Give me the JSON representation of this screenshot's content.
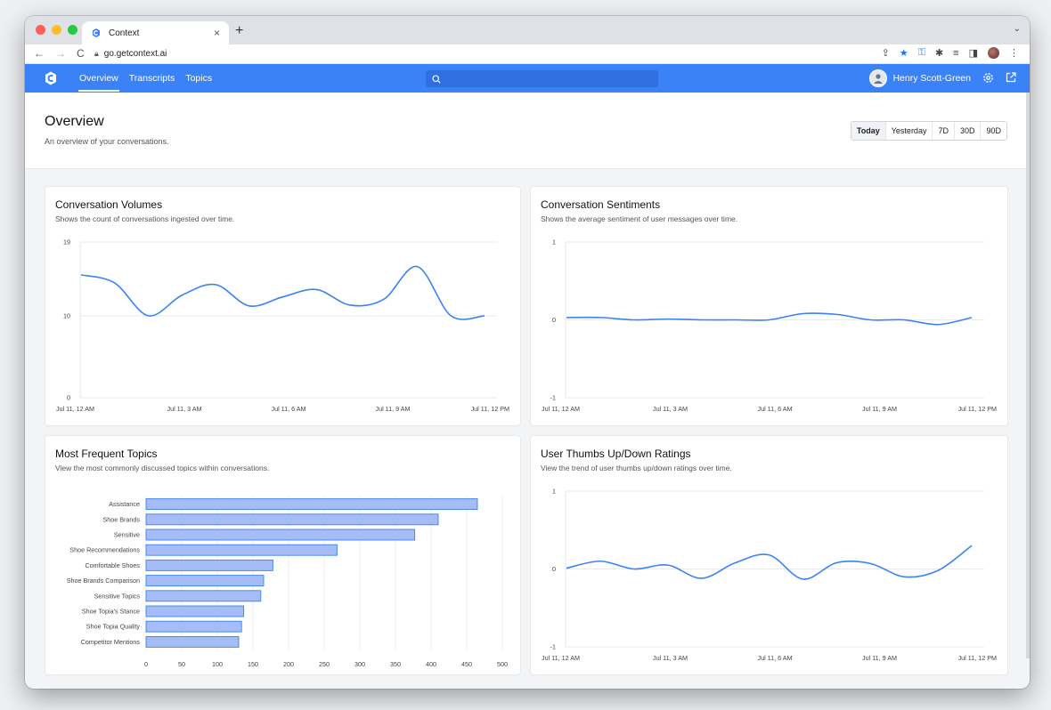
{
  "browser": {
    "tab_title": "Context",
    "tab_close": "×",
    "new_tab": "+",
    "tab_menu": "⌄",
    "url": "go.getcontext.ai",
    "nav_back": "←",
    "nav_forward": "→",
    "nav_reload": "C"
  },
  "app": {
    "nav_tabs": [
      {
        "label": "Overview",
        "active": true
      },
      {
        "label": "Transcripts",
        "active": false
      },
      {
        "label": "Topics",
        "active": false
      }
    ],
    "user_name": "Henry Scott-Green",
    "brand_color": "#3b82f6"
  },
  "header": {
    "title": "Overview",
    "subtitle": "An overview of your conversations.",
    "ranges": [
      "Today",
      "Yesterday",
      "7D",
      "30D",
      "90D"
    ],
    "active_range": "Today"
  },
  "cards": {
    "volumes": {
      "title": "Conversation Volumes",
      "description": "Shows the count of conversations ingested over time."
    },
    "sentiments": {
      "title": "Conversation Sentiments",
      "description": "Shows the average sentiment of user messages over time."
    },
    "topics": {
      "title": "Most Frequent Topics",
      "description": "View the most commonly discussed topics within conversations."
    },
    "ratings": {
      "title": "User Thumbs Up/Down Ratings",
      "description": "View the trend of user thumbs up/down ratings over time."
    }
  },
  "chart_data": [
    {
      "type": "line",
      "x_labels": [
        "Jul 11, 12 AM",
        "Jul 11, 3 AM",
        "Jul 11, 6 AM",
        "Jul 11, 9 AM",
        "Jul 11, 12 PM"
      ],
      "x_hours": [
        0,
        1,
        2,
        3,
        4,
        5,
        6,
        7,
        8,
        9,
        10,
        11,
        12
      ],
      "values": [
        15,
        14,
        10,
        12.5,
        13.8,
        11.2,
        12.3,
        13.2,
        11.3,
        12,
        16,
        10,
        10
      ],
      "ylim": [
        0,
        19
      ],
      "y_ticks": [
        0,
        10,
        19
      ],
      "color": "#3b82f6",
      "grid": true
    },
    {
      "type": "line",
      "x_labels": [
        "Jul 11, 12 AM",
        "Jul 11, 3 AM",
        "Jul 11, 6 AM",
        "Jul 11, 9 AM",
        "Jul 11, 12 PM"
      ],
      "x_hours": [
        0,
        1,
        2,
        3,
        4,
        5,
        6,
        7,
        8,
        9,
        10,
        11,
        12
      ],
      "values": [
        0.03,
        0.03,
        0.0,
        0.01,
        0.0,
        0.0,
        0.0,
        0.08,
        0.07,
        0.0,
        0.0,
        -0.06,
        0.03
      ],
      "ylim": [
        -1,
        1
      ],
      "y_ticks": [
        -1,
        0,
        1
      ],
      "color": "#3b82f6",
      "grid": true
    },
    {
      "type": "bar",
      "orientation": "horizontal",
      "categories": [
        "Assistance",
        "Shoe Brands",
        "Sensitive",
        "Shoe Recommendations",
        "Comfortable Shoes",
        "Shoe Brands Comparison",
        "Sensitive Topics",
        "Shoe Topia's Stance",
        "Shoe Topia Quality",
        "Competitor Mentions"
      ],
      "values": [
        465,
        410,
        377,
        268,
        178,
        165,
        161,
        137,
        134,
        130
      ],
      "xlim": [
        0,
        500
      ],
      "x_ticks": [
        0,
        50,
        100,
        150,
        200,
        250,
        300,
        350,
        400,
        450,
        500
      ],
      "color": "#a5bcf7",
      "edge_color": "#3b82f6",
      "grid": true
    },
    {
      "type": "line",
      "x_labels": [
        "Jul 11, 12 AM",
        "Jul 11, 3 AM",
        "Jul 11, 6 AM",
        "Jul 11, 9 AM",
        "Jul 11, 12 PM"
      ],
      "x_hours": [
        0,
        1,
        2,
        3,
        4,
        5,
        6,
        7,
        8,
        9,
        10,
        11,
        12
      ],
      "values": [
        0.01,
        0.1,
        0.0,
        0.05,
        -0.12,
        0.08,
        0.18,
        -0.13,
        0.08,
        0.07,
        -0.1,
        -0.02,
        0.3
      ],
      "ylim": [
        -1,
        1
      ],
      "y_ticks": [
        -1,
        0,
        1
      ],
      "color": "#3b82f6",
      "grid": true
    }
  ]
}
